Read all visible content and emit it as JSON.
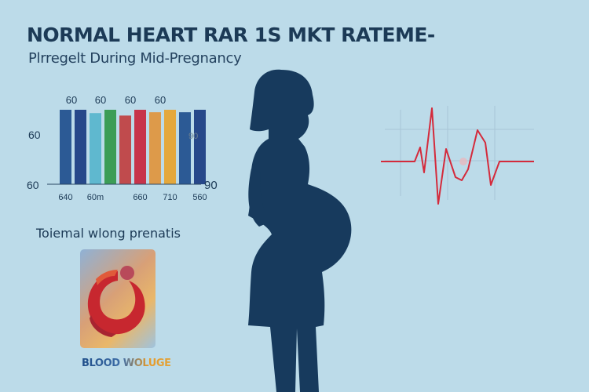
{
  "header": {
    "title": "NORMAL HEART RAR 1S MKT RATEME-",
    "subtitle": "Plrregelt During Mid-Pregnancy"
  },
  "chart_data": {
    "type": "bar",
    "categories": [
      "640",
      "",
      "60m",
      "",
      "",
      "660",
      "",
      "710",
      "",
      "560"
    ],
    "values": [
      90,
      90,
      86,
      90,
      83,
      90,
      87,
      90,
      87,
      90
    ],
    "top_labels": [
      "60",
      "60",
      "60",
      "60"
    ],
    "y_ticks_left": [
      "60",
      "60"
    ],
    "y_ticks_right": [
      "90",
      "90"
    ],
    "colors": [
      "#2c5a95",
      "#27488a",
      "#5fb8cf",
      "#3c9d56",
      "#c04b4d",
      "#c7344a",
      "#dd9a4a",
      "#e4a83c"
    ]
  },
  "ecg": {
    "color": "#d42a3b",
    "grid_color": "#a9c6d6"
  },
  "silhouette": {
    "color": "#173a5d"
  },
  "section": {
    "heading": "Toiemal wlong prenatis"
  },
  "card": {
    "label": "BLOOD WOLUGE",
    "icon": "blood-drop-swirl-icon"
  }
}
